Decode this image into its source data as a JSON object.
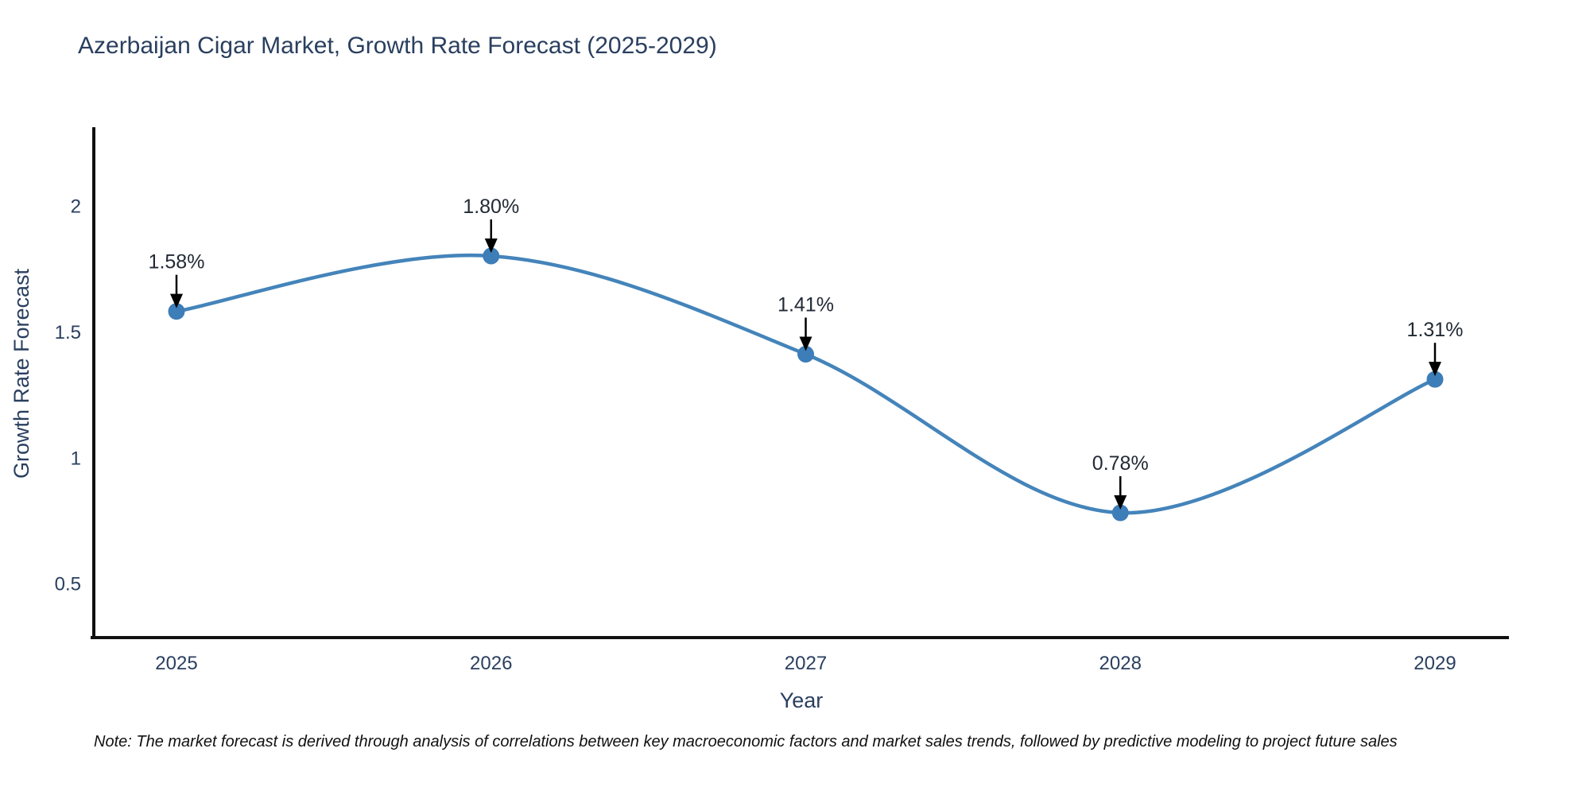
{
  "chart_data": {
    "type": "line",
    "title": "Azerbaijan Cigar Market, Growth Rate Forecast (2025-2029)",
    "xlabel": "Year",
    "ylabel": "Growth Rate Forecast",
    "categories": [
      "2025",
      "2026",
      "2027",
      "2028",
      "2029"
    ],
    "series": [
      {
        "name": "Growth Rate Forecast",
        "values": [
          1.58,
          1.8,
          1.41,
          0.78,
          1.31
        ],
        "point_labels": [
          "1.58%",
          "1.80%",
          "1.41%",
          "0.78%",
          "1.31%"
        ]
      }
    ],
    "y_ticks": [
      0.5,
      1,
      1.5,
      2
    ],
    "ylim": [
      0.3,
      2.3
    ],
    "grid": false,
    "legend": "none",
    "line_shape": "spline",
    "colors": {
      "line": "#4484ba",
      "marker": "#3d7db8",
      "axis": "#111111",
      "text": "#2a3f5f",
      "annotation": "#222a35",
      "arrow": "#000000",
      "background": "#ffffff"
    }
  },
  "note": "Note: The market forecast is derived through analysis of correlations between key macroeconomic factors and market sales trends, followed by predictive modeling to project future sales"
}
